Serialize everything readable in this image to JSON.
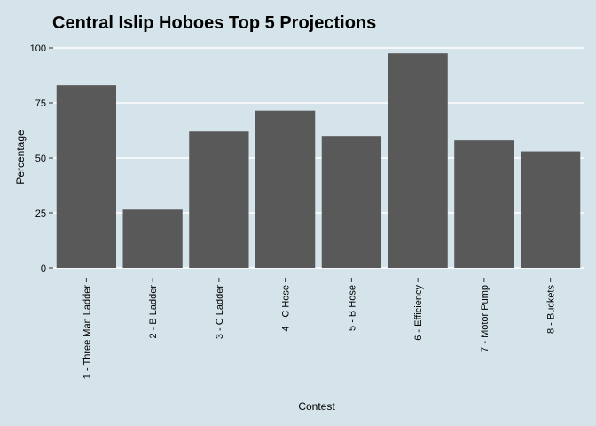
{
  "chart_data": {
    "type": "bar",
    "title": "Central Islip Hoboes Top 5 Projections",
    "xlabel": "Contest",
    "ylabel": "Percentage",
    "categories": [
      "1 - Three Man Ladder",
      "2 - B Ladder",
      "3 - C Ladder",
      "4 - C Hose",
      "5 - B Hose",
      "6 - Efficiency",
      "7 - Motor Pump",
      "8 - Buckets"
    ],
    "values": [
      83,
      26.5,
      62,
      71.5,
      60,
      97.5,
      58,
      53
    ],
    "ylim": [
      0,
      100
    ],
    "yticks": [
      0,
      25,
      50,
      75,
      100
    ],
    "ytick_labels": [
      "0",
      "25",
      "50",
      "75",
      "100"
    ],
    "grid": true,
    "legend": "none"
  },
  "colors": {
    "background": "#d5e4eb",
    "bar": "#595959",
    "grid": "#ffffff",
    "text": "#000000"
  }
}
